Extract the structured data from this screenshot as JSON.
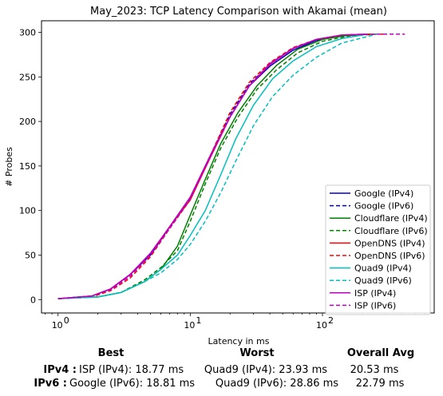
{
  "chart_data": {
    "type": "line",
    "title": "May_2023: TCP Latency Comparison with Akamai (mean)",
    "xlabel": "Latency in ms",
    "ylabel": "# Probes",
    "xscale": "log",
    "xlim": [
      0.75,
      700
    ],
    "ylim": [
      -15,
      313
    ],
    "x_ticks": [
      {
        "value": 1,
        "label": "10",
        "exp": "0"
      },
      {
        "value": 10,
        "label": "10",
        "exp": "1"
      },
      {
        "value": 100,
        "label": "10",
        "exp": "2"
      }
    ],
    "y_ticks": [
      0,
      50,
      100,
      150,
      200,
      250,
      300
    ],
    "grid": false,
    "legend_position": "lower-right",
    "series": [
      {
        "name": "Google (IPv4)",
        "color": "#0000cc",
        "dash": "solid",
        "points": [
          [
            1.0,
            1
          ],
          [
            1.8,
            4
          ],
          [
            2.5,
            12
          ],
          [
            3.5,
            28
          ],
          [
            5,
            50
          ],
          [
            7,
            82
          ],
          [
            10,
            115
          ],
          [
            14,
            160
          ],
          [
            20,
            205
          ],
          [
            28,
            240
          ],
          [
            40,
            262
          ],
          [
            60,
            280
          ],
          [
            90,
            291
          ],
          [
            140,
            296
          ],
          [
            220,
            298
          ],
          [
            300,
            298
          ]
        ]
      },
      {
        "name": "Google (IPv6)",
        "color": "#0000cc",
        "dash": "dashed",
        "points": [
          [
            1.0,
            1
          ],
          [
            1.8,
            4
          ],
          [
            2.5,
            12
          ],
          [
            3.5,
            28
          ],
          [
            5,
            50
          ],
          [
            7,
            82
          ],
          [
            10,
            114
          ],
          [
            14,
            160
          ],
          [
            20,
            208
          ],
          [
            28,
            242
          ],
          [
            40,
            264
          ],
          [
            60,
            282
          ],
          [
            90,
            292
          ],
          [
            140,
            296
          ],
          [
            220,
            298
          ],
          [
            300,
            298
          ]
        ]
      },
      {
        "name": "Cloudflare (IPv4)",
        "color": "#008000",
        "dash": "solid",
        "points": [
          [
            1.0,
            1
          ],
          [
            2,
            3
          ],
          [
            3,
            8
          ],
          [
            4.5,
            20
          ],
          [
            6,
            34
          ],
          [
            8,
            60
          ],
          [
            10,
            95
          ],
          [
            13,
            135
          ],
          [
            17,
            175
          ],
          [
            23,
            210
          ],
          [
            32,
            240
          ],
          [
            45,
            263
          ],
          [
            65,
            281
          ],
          [
            100,
            292
          ],
          [
            160,
            297
          ],
          [
            250,
            298
          ]
        ]
      },
      {
        "name": "Cloudflare (IPv6)",
        "color": "#008000",
        "dash": "dashed",
        "points": [
          [
            1.0,
            1
          ],
          [
            2,
            3
          ],
          [
            3,
            8
          ],
          [
            4.5,
            22
          ],
          [
            6,
            36
          ],
          [
            8,
            55
          ],
          [
            10,
            88
          ],
          [
            13,
            130
          ],
          [
            17,
            170
          ],
          [
            23,
            205
          ],
          [
            32,
            236
          ],
          [
            45,
            258
          ],
          [
            65,
            277
          ],
          [
            100,
            290
          ],
          [
            160,
            296
          ],
          [
            260,
            298
          ]
        ]
      },
      {
        "name": "OpenDNS (IPv4)",
        "color": "#ff0000",
        "dash": "solid",
        "points": [
          [
            1.0,
            1
          ],
          [
            1.8,
            4
          ],
          [
            2.5,
            12
          ],
          [
            3.5,
            28
          ],
          [
            5,
            52
          ],
          [
            7,
            82
          ],
          [
            10,
            112
          ],
          [
            14,
            158
          ],
          [
            20,
            205
          ],
          [
            28,
            240
          ],
          [
            40,
            264
          ],
          [
            60,
            282
          ],
          [
            90,
            292
          ],
          [
            140,
            297
          ],
          [
            220,
            298
          ],
          [
            300,
            298
          ]
        ]
      },
      {
        "name": "OpenDNS (IPv6)",
        "color": "#ff0000",
        "dash": "dashed",
        "points": [
          [
            1.0,
            1
          ],
          [
            1.8,
            3
          ],
          [
            2.5,
            10
          ],
          [
            3.5,
            24
          ],
          [
            5,
            48
          ],
          [
            7,
            80
          ],
          [
            10,
            112
          ],
          [
            14,
            160
          ],
          [
            20,
            210
          ],
          [
            28,
            244
          ],
          [
            40,
            266
          ],
          [
            60,
            283
          ],
          [
            90,
            292
          ],
          [
            140,
            297
          ],
          [
            220,
            298
          ],
          [
            300,
            298
          ]
        ]
      },
      {
        "name": "Quad9 (IPv4)",
        "color": "#00bfbf",
        "dash": "solid",
        "points": [
          [
            1.0,
            1
          ],
          [
            2,
            3
          ],
          [
            3,
            8
          ],
          [
            4.5,
            20
          ],
          [
            6,
            34
          ],
          [
            8,
            50
          ],
          [
            10,
            72
          ],
          [
            13,
            100
          ],
          [
            17,
            140
          ],
          [
            22,
            180
          ],
          [
            30,
            218
          ],
          [
            42,
            248
          ],
          [
            60,
            268
          ],
          [
            90,
            284
          ],
          [
            140,
            293
          ],
          [
            220,
            298
          ]
        ]
      },
      {
        "name": "Quad9 (IPv6)",
        "color": "#00bfbf",
        "dash": "dashed",
        "points": [
          [
            1.0,
            1
          ],
          [
            2,
            3
          ],
          [
            3,
            8
          ],
          [
            4.5,
            20
          ],
          [
            6,
            30
          ],
          [
            8,
            45
          ],
          [
            10,
            62
          ],
          [
            13,
            88
          ],
          [
            17,
            120
          ],
          [
            22,
            155
          ],
          [
            30,
            195
          ],
          [
            42,
            228
          ],
          [
            60,
            252
          ],
          [
            90,
            272
          ],
          [
            140,
            288
          ],
          [
            260,
            298
          ]
        ]
      },
      {
        "name": "ISP (IPv4)",
        "color": "#bf00bf",
        "dash": "solid",
        "points": [
          [
            1.0,
            1
          ],
          [
            1.8,
            4
          ],
          [
            2.5,
            12
          ],
          [
            3.5,
            28
          ],
          [
            5,
            52
          ],
          [
            7,
            82
          ],
          [
            10,
            115
          ],
          [
            14,
            160
          ],
          [
            20,
            205
          ],
          [
            28,
            240
          ],
          [
            40,
            265
          ],
          [
            60,
            282
          ],
          [
            90,
            292
          ],
          [
            140,
            297
          ],
          [
            220,
            298
          ]
        ]
      },
      {
        "name": "ISP (IPv6)",
        "color": "#bf00bf",
        "dash": "dashed",
        "points": [
          [
            1.0,
            1
          ],
          [
            1.8,
            4
          ],
          [
            2.5,
            11
          ],
          [
            3.5,
            26
          ],
          [
            5,
            50
          ],
          [
            7,
            80
          ],
          [
            10,
            113
          ],
          [
            14,
            158
          ],
          [
            20,
            205
          ],
          [
            28,
            240
          ],
          [
            40,
            264
          ],
          [
            60,
            282
          ],
          [
            90,
            292
          ],
          [
            140,
            297
          ],
          [
            250,
            298
          ],
          [
            420,
            298
          ]
        ]
      }
    ]
  },
  "summary": {
    "headers": {
      "best": "Best",
      "worst": "Worst",
      "overall": "Overall Avg"
    },
    "rows": [
      {
        "label": "IPv4 :",
        "best": "ISP (IPv4): 18.77 ms",
        "worst": "Quad9 (IPv4): 23.93 ms",
        "overall": "20.53 ms"
      },
      {
        "label": "IPv6 :",
        "best": "Google (IPv6): 18.81 ms",
        "worst": "Quad9 (IPv6): 28.86 ms",
        "overall": "22.79 ms"
      }
    ]
  }
}
